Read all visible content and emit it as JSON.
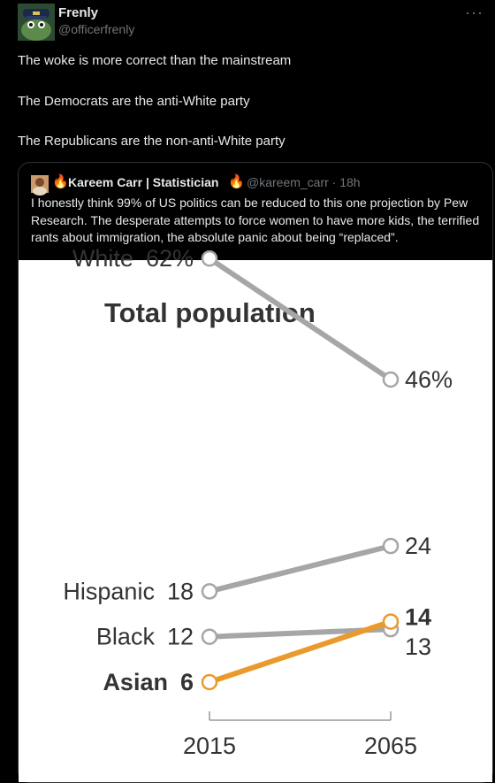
{
  "post": {
    "author_name": "Frenly",
    "author_handle": "@officerfrenly",
    "more_glyph": "···",
    "lines": [
      "The woke is more correct than the mainstream",
      "The Democrats are the anti-White party",
      "The Republicans are the non-anti-White party"
    ]
  },
  "quoted": {
    "fire_icon": "🔥",
    "author_name": "Kareem Carr | Statistician",
    "handle_time": "@kareem_carr · 18h",
    "text": "I honestly think 99% of US politics can be reduced to this one projection by Pew Research. The desperate attempts to force women to have more kids, the terrified rants about immigration, the absolute panic about being “replaced”."
  },
  "chart_data": {
    "type": "line",
    "title": "Total population",
    "x": [
      "2015",
      "2065"
    ],
    "series": [
      {
        "name": "White",
        "values": [
          62,
          46
        ],
        "start_label": "62%",
        "end_label": "46%",
        "color": "#a6a6a6"
      },
      {
        "name": "Hispanic",
        "values": [
          18,
          24
        ],
        "start_label": "18",
        "end_label": "24",
        "color": "#a6a6a6"
      },
      {
        "name": "Black",
        "values": [
          12,
          13
        ],
        "start_label": "12",
        "end_label": "13",
        "color": "#a6a6a6"
      },
      {
        "name": "Asian",
        "values": [
          6,
          14
        ],
        "start_label": "6",
        "end_label": "14",
        "color": "#ea9a2c",
        "highlight": true
      }
    ]
  }
}
